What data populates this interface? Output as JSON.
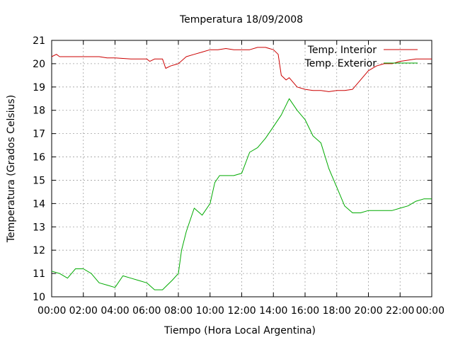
{
  "chart_data": {
    "type": "line",
    "title": "Temperatura 18/09/2008",
    "xlabel": "Tiempo (Hora Local Argentina)",
    "ylabel": "Temperatura (Grados Celsius)",
    "x_ticks": [
      "00:00",
      "02:00",
      "04:00",
      "06:00",
      "08:00",
      "10:00",
      "12:00",
      "14:00",
      "16:00",
      "18:00",
      "20:00",
      "22:00",
      "00:00"
    ],
    "xlim": [
      0,
      24
    ],
    "ylim": [
      10,
      21
    ],
    "y_ticks": [
      10,
      11,
      12,
      13,
      14,
      15,
      16,
      17,
      18,
      19,
      20,
      21
    ],
    "grid": true,
    "legend_position": "top-right",
    "series": [
      {
        "name": "Temp. Interior",
        "color": "#cc0000",
        "x": [
          0,
          0.3,
          0.5,
          1,
          2,
          3,
          3.5,
          4,
          5,
          6,
          6.2,
          6.5,
          7,
          7.2,
          7.5,
          8,
          8.5,
          9,
          9.5,
          10,
          10.5,
          11,
          11.5,
          12,
          12.5,
          13,
          13.5,
          14,
          14.3,
          14.5,
          14.8,
          15,
          15.5,
          16,
          16.5,
          17,
          17.5,
          18,
          18.5,
          19,
          19.5,
          20,
          20.5,
          21,
          21.5,
          22,
          23,
          24
        ],
        "y": [
          20.3,
          20.4,
          20.3,
          20.3,
          20.3,
          20.3,
          20.25,
          20.25,
          20.2,
          20.2,
          20.1,
          20.2,
          20.2,
          19.8,
          19.9,
          20.0,
          20.3,
          20.4,
          20.5,
          20.6,
          20.6,
          20.65,
          20.6,
          20.6,
          20.6,
          20.7,
          20.7,
          20.6,
          20.4,
          19.5,
          19.3,
          19.4,
          19.0,
          18.9,
          18.85,
          18.85,
          18.8,
          18.85,
          18.85,
          18.9,
          19.3,
          19.7,
          19.9,
          20.0,
          20.0,
          20.1,
          20.2,
          20.2
        ]
      },
      {
        "name": "Temp. Exterior",
        "color": "#00aa00",
        "x": [
          0,
          0.5,
          1,
          1.5,
          2,
          2.5,
          3,
          3.5,
          4,
          4.5,
          5,
          5.5,
          6,
          6.5,
          7,
          7.3,
          7.6,
          8,
          8.2,
          8.5,
          9,
          9.5,
          10,
          10.3,
          10.6,
          11,
          11.5,
          12,
          12.5,
          13,
          13.5,
          14,
          14.5,
          15,
          15.5,
          16,
          16.5,
          17,
          17.5,
          18,
          18.5,
          19,
          19.5,
          20,
          20.5,
          21,
          21.5,
          22,
          22.5,
          23,
          23.5,
          24
        ],
        "y": [
          11.1,
          11.0,
          10.8,
          11.2,
          11.2,
          11.0,
          10.6,
          10.5,
          10.4,
          10.9,
          10.8,
          10.7,
          10.6,
          10.3,
          10.3,
          10.5,
          10.7,
          11.0,
          12.0,
          12.8,
          13.8,
          13.5,
          14.0,
          14.9,
          15.2,
          15.2,
          15.2,
          15.3,
          16.2,
          16.4,
          16.8,
          17.3,
          17.8,
          18.5,
          18.0,
          17.6,
          16.9,
          16.6,
          15.5,
          14.7,
          13.9,
          13.6,
          13.6,
          13.7,
          13.7,
          13.7,
          13.7,
          13.8,
          13.9,
          14.1,
          14.2,
          14.2
        ]
      }
    ]
  }
}
